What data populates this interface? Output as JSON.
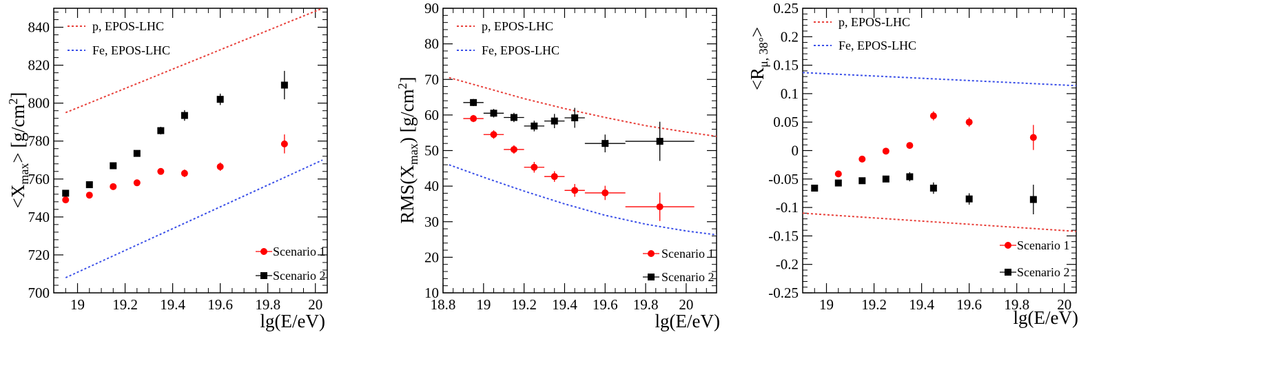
{
  "chart_data": [
    {
      "type": "scatter",
      "title": "",
      "xlabel": "lg(E/eV)",
      "ylabel_main": "<X",
      "ylabel_sub": "max",
      "ylabel_tail": "> [g/cm",
      "ylabel_sup": "2",
      "ylabel_end": "]",
      "xlim": [
        18.9,
        20.05
      ],
      "ylim": [
        700,
        850
      ],
      "xticks": [
        19,
        19.2,
        19.4,
        19.6,
        19.8,
        20
      ],
      "xtick_labels": [
        "19",
        "19.2",
        "19.4",
        "19.6",
        "19.8",
        "20"
      ],
      "yticks": [
        700,
        720,
        740,
        760,
        780,
        800,
        820,
        840
      ],
      "ytick_labels": [
        "700",
        "720",
        "740",
        "760",
        "780",
        "800",
        "820",
        "840"
      ],
      "lines": [
        {
          "name": "p, EPOS-LHC",
          "color": "#e8403a",
          "x": [
            18.95,
            20.03
          ],
          "y": [
            795,
            850
          ]
        },
        {
          "name": "Fe, EPOS-LHC",
          "color": "#3a4fe8",
          "x": [
            18.95,
            20.03
          ],
          "y": [
            708,
            770
          ]
        }
      ],
      "series": [
        {
          "name": "Scenario 1",
          "color": "#ff0000",
          "marker": "circle",
          "x": [
            18.95,
            19.05,
            19.15,
            19.25,
            19.35,
            19.45,
            19.6,
            19.87
          ],
          "y": [
            749,
            751.5,
            756,
            758,
            764,
            763,
            766.5,
            778.5
          ],
          "yerr": [
            1.0,
            1.2,
            1.3,
            1.5,
            1.6,
            2.0,
            2.2,
            5.0
          ],
          "xerr": [
            0,
            0,
            0,
            0,
            0,
            0,
            0,
            0
          ]
        },
        {
          "name": "Scenario 2",
          "color": "#000000",
          "marker": "square",
          "x": [
            18.95,
            19.05,
            19.15,
            19.25,
            19.35,
            19.45,
            19.6,
            19.87
          ],
          "y": [
            752.5,
            757,
            767,
            773.5,
            785.5,
            793.5,
            802,
            809.5
          ],
          "yerr": [
            1.0,
            1.2,
            1.3,
            1.5,
            2.0,
            2.8,
            3.0,
            7.5
          ],
          "xerr": [
            0,
            0,
            0,
            0,
            0,
            0,
            0,
            0
          ]
        }
      ]
    },
    {
      "type": "scatter",
      "title": "",
      "xlabel": "lg(E/eV)",
      "ylabel_main": "RMS(X",
      "ylabel_sub": "max",
      "ylabel_tail": ") [g/cm",
      "ylabel_sup": "2",
      "ylabel_end": "]",
      "xlim": [
        18.8,
        20.15
      ],
      "ylim": [
        10,
        90
      ],
      "xticks": [
        18.8,
        19,
        19.2,
        19.4,
        19.6,
        19.8,
        20
      ],
      "xtick_labels": [
        "18.8",
        "19",
        "19.2",
        "19.4",
        "19.6",
        "19.8",
        "20"
      ],
      "yticks": [
        10,
        20,
        30,
        40,
        50,
        60,
        70,
        80,
        90
      ],
      "ytick_labels": [
        "10",
        "20",
        "30",
        "40",
        "50",
        "60",
        "70",
        "80",
        "90"
      ],
      "lines": [
        {
          "name": "p, EPOS-LHC",
          "color": "#e8403a",
          "x": [
            18.83,
            19.0,
            19.2,
            19.4,
            19.6,
            19.8,
            20.0,
            20.15
          ],
          "y": [
            70.5,
            67.8,
            64.6,
            61.8,
            59.3,
            57.0,
            55.2,
            54.0
          ]
        },
        {
          "name": "Fe, EPOS-LHC",
          "color": "#3a4fe8",
          "x": [
            18.83,
            19.0,
            19.2,
            19.4,
            19.6,
            19.8,
            20.0,
            20.15
          ],
          "y": [
            46.0,
            42.5,
            38.6,
            35.0,
            31.8,
            29.3,
            27.4,
            26.3
          ]
        }
      ],
      "series": [
        {
          "name": "Scenario 1",
          "color": "#ff0000",
          "marker": "circle",
          "x": [
            18.95,
            19.05,
            19.15,
            19.25,
            19.35,
            19.45,
            19.6,
            19.87
          ],
          "y": [
            59,
            54.5,
            50.3,
            45.3,
            42.7,
            38.8,
            38.1,
            34.2
          ],
          "yerr": [
            1.0,
            1.2,
            1.2,
            1.5,
            1.5,
            1.8,
            2.0,
            4.0
          ],
          "xerr": [
            0.05,
            0.05,
            0.05,
            0.05,
            0.05,
            0.05,
            0.1,
            0.17
          ]
        },
        {
          "name": "Scenario 2",
          "color": "#000000",
          "marker": "square",
          "x": [
            18.95,
            19.05,
            19.15,
            19.25,
            19.35,
            19.45,
            19.6,
            19.87
          ],
          "y": [
            63.5,
            60.5,
            59.3,
            56.9,
            58.3,
            59.2,
            52,
            52.6
          ],
          "yerr": [
            1.0,
            1.2,
            1.3,
            1.5,
            2.0,
            2.8,
            2.5,
            5.5
          ],
          "xerr": [
            0.05,
            0.05,
            0.05,
            0.05,
            0.05,
            0.05,
            0.1,
            0.17
          ]
        }
      ]
    },
    {
      "type": "scatter",
      "title": "",
      "xlabel": "lg(E/eV)",
      "ylabel_main": "<R",
      "ylabel_sub": "μ, 38°",
      "ylabel_tail": ">",
      "ylabel_sup": "",
      "ylabel_end": "",
      "xlim": [
        18.9,
        20.05
      ],
      "ylim": [
        -0.25,
        0.25
      ],
      "xticks": [
        19,
        19.2,
        19.4,
        19.6,
        19.8,
        20
      ],
      "xtick_labels": [
        "19",
        "19.2",
        "19.4",
        "19.6",
        "19.8",
        "20"
      ],
      "yticks": [
        -0.25,
        -0.2,
        -0.15,
        -0.1,
        -0.05,
        0,
        0.05,
        0.1,
        0.15,
        0.2,
        0.25
      ],
      "ytick_labels": [
        "-0.25",
        "-0.2",
        "-0.15",
        "-0.1",
        "-0.05",
        "0",
        "0.05",
        "0.1",
        "0.15",
        "0.2",
        "0.25"
      ],
      "lines": [
        {
          "name": "p, EPOS-LHC",
          "color": "#e8403a",
          "x": [
            18.9,
            20.05
          ],
          "y": [
            -0.11,
            -0.142
          ]
        },
        {
          "name": "Fe, EPOS-LHC",
          "color": "#3a4fe8",
          "x": [
            18.9,
            20.05
          ],
          "y": [
            0.137,
            0.114
          ]
        }
      ],
      "series": [
        {
          "name": "Scenario 1",
          "color": "#ff0000",
          "marker": "circle",
          "x": [
            19.05,
            19.15,
            19.25,
            19.35,
            19.45,
            19.6,
            19.87
          ],
          "y": [
            -0.041,
            -0.015,
            -0.001,
            0.009,
            0.061,
            0.05,
            0.023
          ],
          "yerr": [
            0.003,
            0.004,
            0.004,
            0.005,
            0.008,
            0.008,
            0.022
          ],
          "xerr": [
            0,
            0,
            0,
            0,
            0,
            0,
            0
          ]
        },
        {
          "name": "Scenario 2",
          "color": "#000000",
          "marker": "square",
          "x": [
            18.95,
            19.05,
            19.15,
            19.25,
            19.35,
            19.45,
            19.6,
            19.87
          ],
          "y": [
            -0.066,
            -0.057,
            -0.053,
            -0.05,
            -0.046,
            -0.066,
            -0.085,
            -0.086
          ],
          "yerr": [
            0.003,
            0.003,
            0.004,
            0.004,
            0.008,
            0.01,
            0.01,
            0.026
          ],
          "xerr": [
            0,
            0,
            0,
            0,
            0,
            0,
            0,
            0
          ]
        }
      ]
    }
  ]
}
